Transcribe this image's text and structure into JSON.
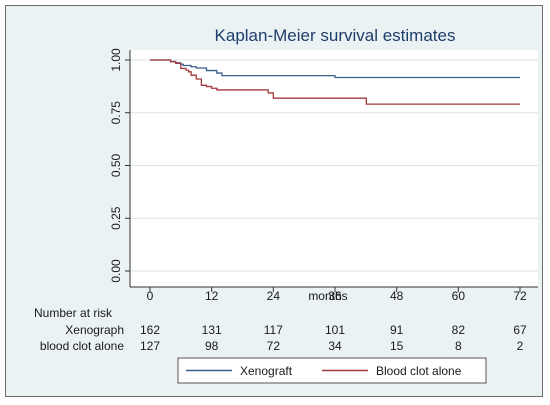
{
  "chart_data": {
    "type": "line",
    "title": "Kaplan-Meier survival estimates",
    "xlabel": "months",
    "ylabel": "",
    "xlim": [
      0,
      72
    ],
    "ylim": [
      0,
      1
    ],
    "xticks": [
      "0",
      "12",
      "24",
      "36",
      "48",
      "60",
      "72"
    ],
    "yticks": [
      "0.00",
      "0.25",
      "0.50",
      "0.75",
      "1.00"
    ],
    "grid": "horizontal",
    "legend_position": "bottom",
    "series": [
      {
        "name": "Xenograft",
        "color": "#3b5f8c",
        "x": [
          0,
          3,
          4,
          5,
          6,
          6.5,
          8,
          9,
          11,
          13,
          14,
          36,
          72
        ],
        "y": [
          1.0,
          1.0,
          0.993,
          0.987,
          0.98,
          0.974,
          0.968,
          0.962,
          0.95,
          0.938,
          0.926,
          0.917,
          0.917
        ]
      },
      {
        "name": "Blood clot alone",
        "color": "#a3393c",
        "x": [
          0,
          3,
          4,
          5,
          6,
          7,
          7.5,
          8,
          9,
          10,
          11,
          12,
          13,
          23,
          24,
          42,
          42.1,
          72
        ],
        "y": [
          1.0,
          1.0,
          0.992,
          0.984,
          0.96,
          0.952,
          0.944,
          0.928,
          0.91,
          0.88,
          0.874,
          0.866,
          0.858,
          0.844,
          0.819,
          0.819,
          0.791,
          0.791
        ]
      }
    ],
    "risk_table": {
      "header": "Number at risk",
      "time_points": [
        0,
        12,
        24,
        36,
        48,
        60,
        72
      ],
      "rows": [
        {
          "label": "Xenograph",
          "values": [
            "162",
            "131",
            "117",
            "101",
            "91",
            "82",
            "67"
          ]
        },
        {
          "label": "blood clot alone",
          "values": [
            "127",
            "98",
            "72",
            "34",
            "15",
            "8",
            "2"
          ]
        }
      ]
    },
    "legend": [
      "Xenograft",
      "Blood clot alone"
    ]
  }
}
